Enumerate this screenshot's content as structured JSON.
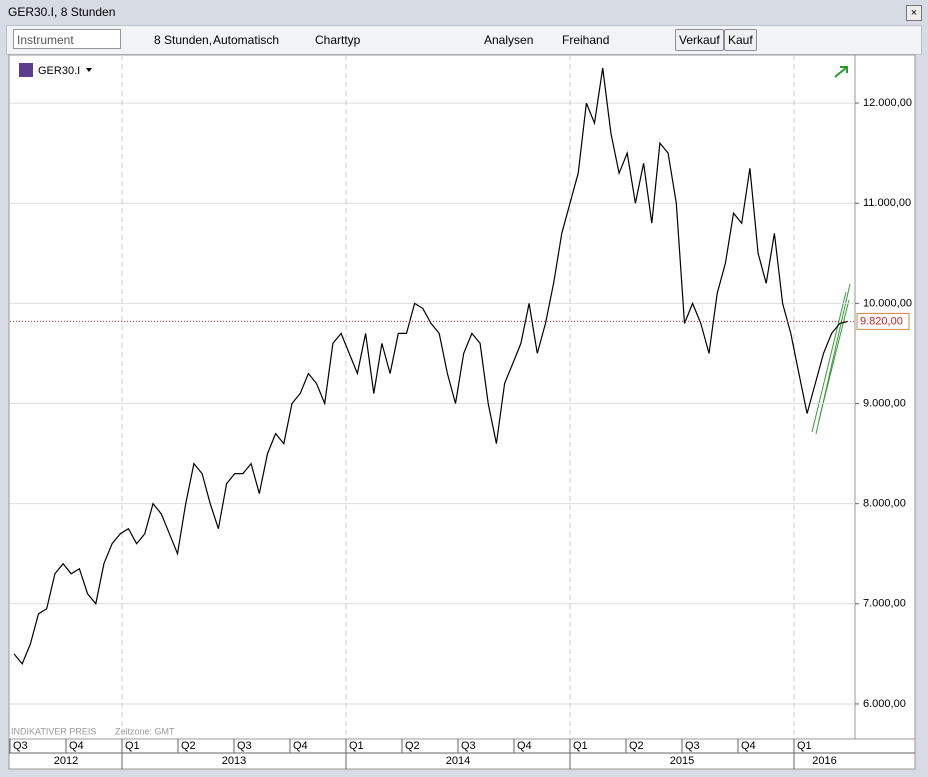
{
  "window": {
    "title": "GER30.I, 8 Stunden"
  },
  "toolbar": {
    "instrument_placeholder": "Instrument",
    "interval": "8 Stunden,",
    "scale": "Automatisch",
    "chart_type": "Charttyp",
    "analyses": "Analysen",
    "freehand": "Freihand",
    "sell": "Verkauf",
    "buy": "Kauf"
  },
  "chart_data": {
    "type": "line",
    "instrument": "GER30.I",
    "footer_price": "INDIKATIVER PREIS",
    "footer_timezone": "Zeitzone: GMT",
    "quarters": [
      "Q3",
      "Q4",
      "Q1",
      "Q2",
      "Q3",
      "Q4",
      "Q1",
      "Q2",
      "Q3",
      "Q4",
      "Q1",
      "Q2",
      "Q3",
      "Q4",
      "Q1"
    ],
    "years": [
      "2012",
      "2013",
      "2014",
      "2015",
      "2016"
    ],
    "ylim": [
      5650,
      12480
    ],
    "yticks": [
      {
        "value": 6000,
        "label": "6.000,00"
      },
      {
        "value": 7000,
        "label": "7.000,00"
      },
      {
        "value": 8000,
        "label": "8.000,00"
      },
      {
        "value": 9000,
        "label": "9.000,00"
      },
      {
        "value": 10000,
        "label": "10.000,00"
      },
      {
        "value": 11000,
        "label": "11.000,00"
      },
      {
        "value": 12000,
        "label": "12.000,00"
      }
    ],
    "grid": true,
    "current_price": {
      "value": 9820,
      "label": "9.820,00"
    },
    "series": [
      {
        "name": "GER30.I",
        "color": "#000000",
        "values": [
          6500,
          6400,
          6600,
          6900,
          6950,
          7300,
          7400,
          7300,
          7350,
          7100,
          7000,
          7400,
          7600,
          7700,
          7750,
          7600,
          7700,
          8000,
          7900,
          7700,
          7500,
          8000,
          8400,
          8300,
          8000,
          7750,
          8200,
          8300,
          8300,
          8400,
          8100,
          8500,
          8700,
          8600,
          9000,
          9100,
          9300,
          9200,
          9000,
          9600,
          9700,
          9500,
          9300,
          9700,
          9100,
          9600,
          9300,
          9700,
          9700,
          10000,
          9950,
          9800,
          9700,
          9300,
          9000,
          9500,
          9700,
          9600,
          9000,
          8600,
          9200,
          9400,
          9600,
          10000,
          9500,
          9800,
          10200,
          10700,
          11000,
          11300,
          12000,
          11800,
          12350,
          11700,
          11300,
          11500,
          11000,
          11400,
          10800,
          11600,
          11500,
          11000,
          9800,
          10000,
          9800,
          9500,
          10100,
          10400,
          10900,
          10800,
          11350,
          10500,
          10200,
          10700,
          10000,
          9700,
          9300,
          8900,
          9200,
          9500,
          9700,
          9800,
          9820
        ]
      }
    ]
  }
}
